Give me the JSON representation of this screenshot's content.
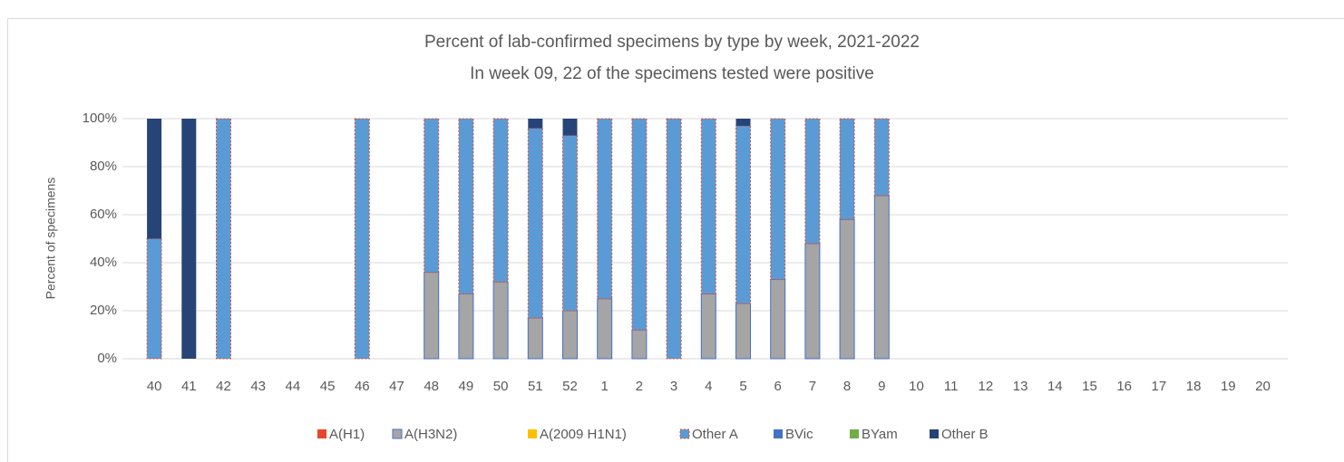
{
  "chart_data": {
    "type": "stacked_bar",
    "title": "Percent of lab-confirmed specimens by type by week, 2021-2022",
    "subtitle": "In week 09, 22 of the specimens tested were positive",
    "y_label": "Percent of specimens",
    "categories": [
      "40",
      "41",
      "42",
      "43",
      "44",
      "45",
      "46",
      "47",
      "48",
      "49",
      "50",
      "51",
      "52",
      "1",
      "2",
      "3",
      "4",
      "5",
      "6",
      "7",
      "8",
      "9",
      "10",
      "11",
      "12",
      "13",
      "14",
      "15",
      "16",
      "17",
      "18",
      "19",
      "20"
    ],
    "series": [
      {
        "name": "A(H1)",
        "color": "#e8472b",
        "values": [
          0,
          0,
          0,
          0,
          0,
          0,
          0,
          0,
          0,
          0,
          0,
          0,
          0,
          0,
          0,
          0,
          0,
          0,
          0,
          0,
          0,
          0,
          0,
          0,
          0,
          0,
          0,
          0,
          0,
          0,
          0,
          0,
          0
        ]
      },
      {
        "name": "A(H3N2)",
        "color": "#a5a5a5",
        "values": [
          0,
          0,
          0,
          0,
          0,
          0,
          0,
          0,
          36,
          27,
          32,
          17,
          20,
          25,
          12,
          0,
          27,
          23,
          33,
          48,
          58,
          68,
          0,
          0,
          0,
          0,
          0,
          0,
          0,
          0,
          0,
          0,
          0
        ]
      },
      {
        "name": "A(2009 H1N1)",
        "color": "#ffc000",
        "values": [
          0,
          0,
          0,
          0,
          0,
          0,
          0,
          0,
          0,
          0,
          0,
          0,
          0,
          0,
          0,
          0,
          0,
          0,
          0,
          0,
          0,
          0,
          0,
          0,
          0,
          0,
          0,
          0,
          0,
          0,
          0,
          0,
          0
        ]
      },
      {
        "name": "Other A",
        "color": "#5b9bd5",
        "values": [
          50,
          0,
          100,
          0,
          0,
          0,
          100,
          0,
          64,
          73,
          68,
          79,
          73,
          75,
          88,
          100,
          73,
          74,
          67,
          52,
          42,
          32,
          0,
          0,
          0,
          0,
          0,
          0,
          0,
          0,
          0,
          0,
          0
        ]
      },
      {
        "name": "BVic",
        "color": "#4472c4",
        "values": [
          0,
          0,
          0,
          0,
          0,
          0,
          0,
          0,
          0,
          0,
          0,
          0,
          0,
          0,
          0,
          0,
          0,
          0,
          0,
          0,
          0,
          0,
          0,
          0,
          0,
          0,
          0,
          0,
          0,
          0,
          0,
          0,
          0
        ]
      },
      {
        "name": "BYam",
        "color": "#70ad47",
        "values": [
          0,
          0,
          0,
          0,
          0,
          0,
          0,
          0,
          0,
          0,
          0,
          0,
          0,
          0,
          0,
          0,
          0,
          0,
          0,
          0,
          0,
          0,
          0,
          0,
          0,
          0,
          0,
          0,
          0,
          0,
          0,
          0,
          0
        ]
      },
      {
        "name": "Other B",
        "color": "#264478",
        "values": [
          50,
          100,
          0,
          0,
          0,
          0,
          0,
          0,
          0,
          0,
          0,
          4,
          7,
          0,
          0,
          0,
          0,
          3,
          0,
          0,
          0,
          0,
          0,
          0,
          0,
          0,
          0,
          0,
          0,
          0,
          0,
          0,
          0
        ]
      }
    ],
    "ylim": [
      0,
      100
    ],
    "yticks": [
      {
        "value": 0,
        "label": "0%"
      },
      {
        "value": 20,
        "label": "20%"
      },
      {
        "value": 40,
        "label": "40%"
      },
      {
        "value": 60,
        "label": "60%"
      },
      {
        "value": 80,
        "label": "80%"
      },
      {
        "value": 100,
        "label": "100%"
      }
    ],
    "grid": true
  }
}
